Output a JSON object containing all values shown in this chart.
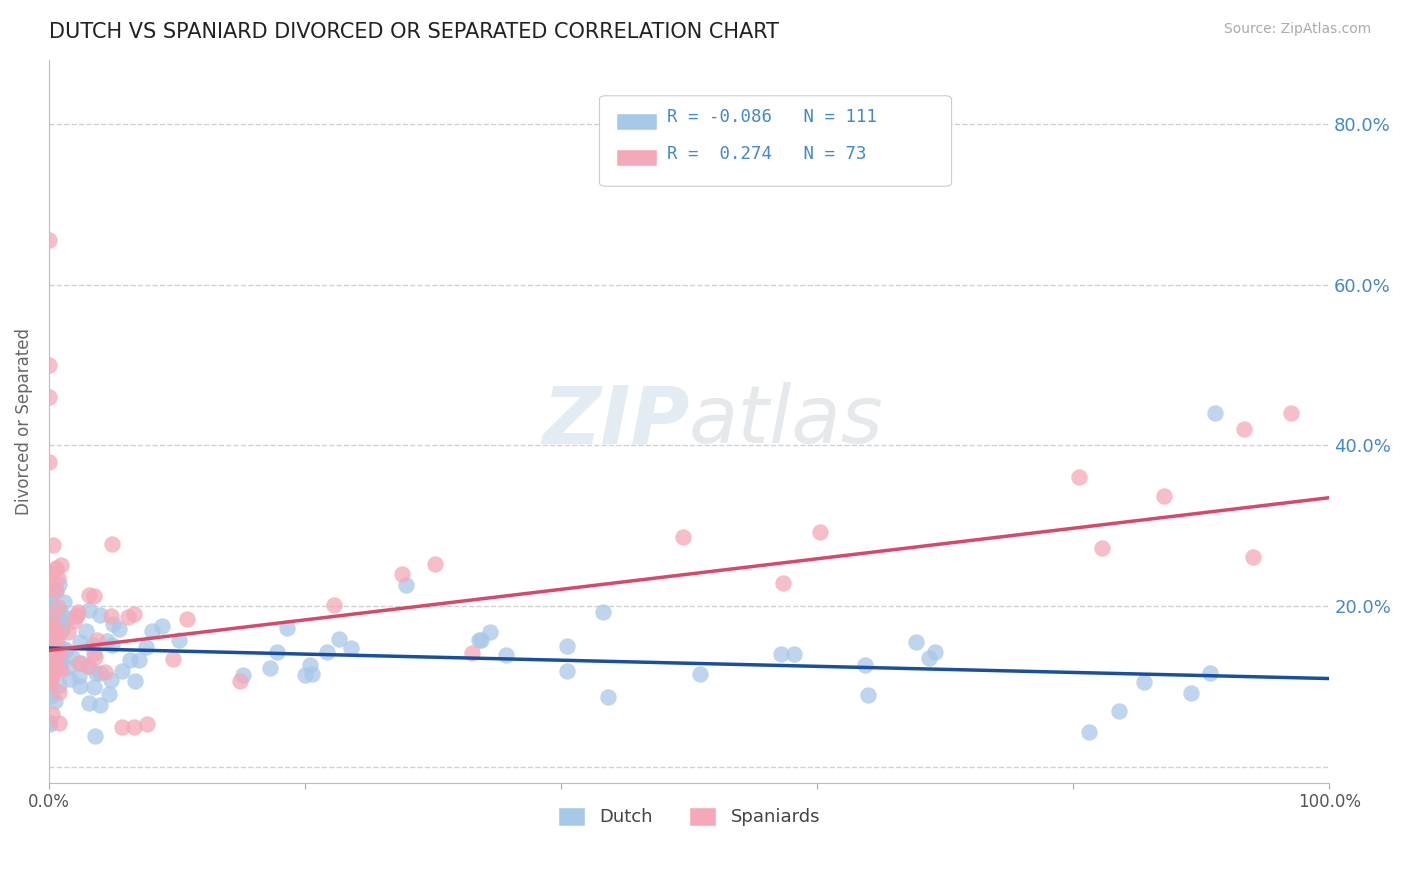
{
  "title": "DUTCH VS SPANIARD DIVORCED OR SEPARATED CORRELATION CHART",
  "source": "Source: ZipAtlas.com",
  "ylabel": "Divorced or Separated",
  "y_tick_labels_right": [
    "",
    "20.0%",
    "40.0%",
    "60.0%",
    "80.0%"
  ],
  "y_ticks": [
    0.0,
    0.2,
    0.4,
    0.6,
    0.8
  ],
  "dutch_color": "#a8c8e8",
  "spaniard_color": "#f4a8b8",
  "dutch_line_color": "#1a4fa0",
  "spaniard_line_color": "#d84868",
  "dutch_R": -0.086,
  "dutch_N": 111,
  "spaniard_R": 0.274,
  "spaniard_N": 73,
  "background_color": "#ffffff",
  "grid_color": "#cccccc",
  "title_color": "#222222",
  "legend_text_color": "#4488cc",
  "title_fontsize": 15,
  "axis_label_color": "#888888"
}
